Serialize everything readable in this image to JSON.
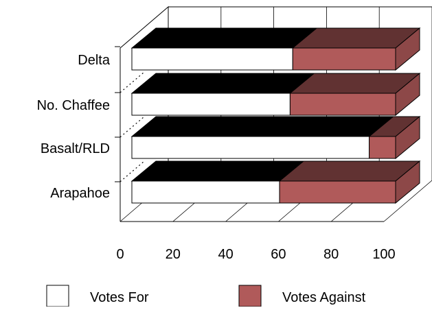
{
  "chart_data": {
    "type": "bar",
    "orientation": "horizontal",
    "stacked": true,
    "style": "3d",
    "normalized_percent": true,
    "categories": [
      "Delta",
      "No. Chaffee",
      "Basalt/RLD",
      "Arapahoe"
    ],
    "series": [
      {
        "name": "Votes For",
        "values": [
          61,
          60,
          90,
          56
        ],
        "color": "#ffffff"
      },
      {
        "name": "Votes Against",
        "values": [
          39,
          40,
          10,
          44
        ],
        "color": "#b05a5a"
      }
    ],
    "xaxis": {
      "range": [
        0,
        100
      ],
      "ticks": [
        0,
        20,
        40,
        60,
        80,
        100
      ]
    },
    "title": "",
    "xlabel": "",
    "ylabel": "",
    "grid": true,
    "legend_position": "bottom"
  }
}
